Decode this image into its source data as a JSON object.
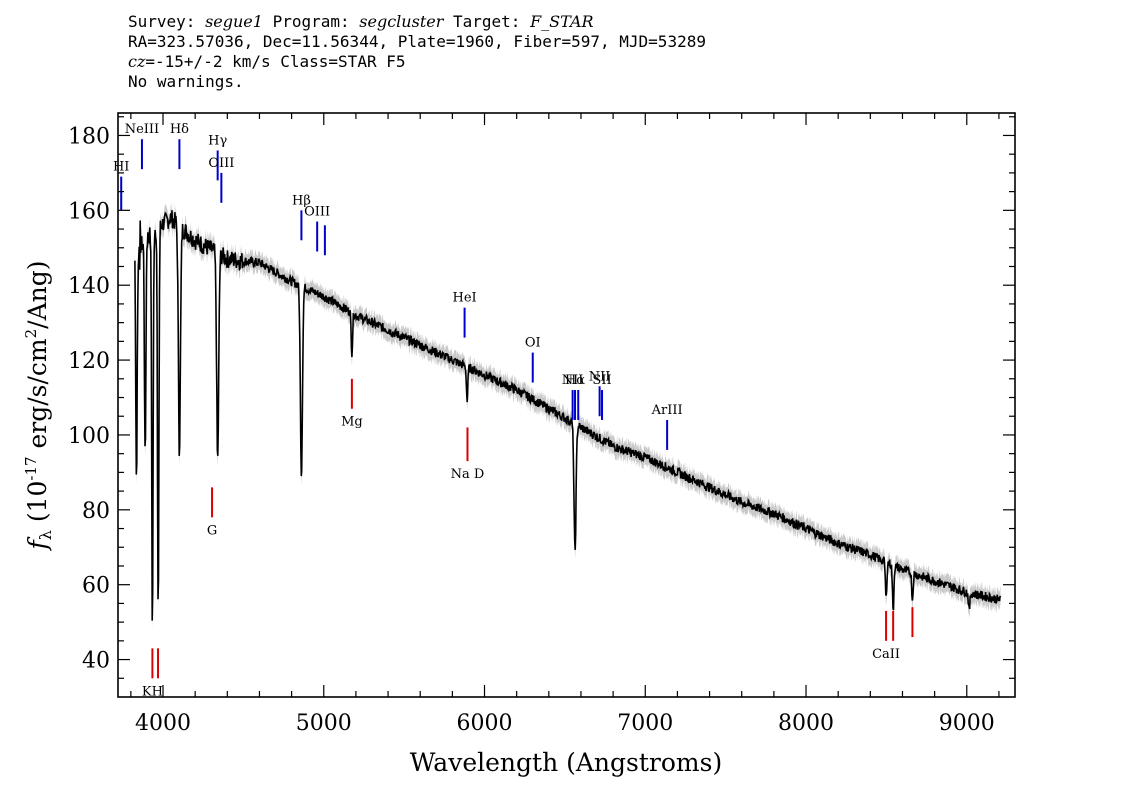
{
  "header": {
    "survey_label": "Survey:",
    "survey": "segue1",
    "program_label": "Program:",
    "program": "segcluster",
    "target_label": "Target:",
    "target": "F_STAR",
    "line2": "RA=323.57036, Dec=11.56344, Plate=1960, Fiber=597, MJD=53289",
    "cz_label": "cz",
    "cz_value": "=-15+/-2",
    "cz_rest": " km/s Class=STAR F5",
    "warnings": "No warnings."
  },
  "chart_data": {
    "type": "line",
    "xlabel": "Wavelength (Angstroms)",
    "ylabel": "f_λ (10^-17 erg/s/cm^2/Ang)",
    "xlim": [
      3720,
      9300
    ],
    "ylim": [
      30,
      186
    ],
    "x_ticks": [
      4000,
      5000,
      6000,
      7000,
      8000,
      9000
    ],
    "y_ticks": [
      40,
      60,
      80,
      100,
      120,
      140,
      160,
      180
    ],
    "grid": false,
    "colors": {
      "flux": "#000000",
      "error_band": "#bbbbbb",
      "emission": "#0000cc",
      "absorption": "#dd0000"
    },
    "continuum": [
      [
        3850,
        150
      ],
      [
        3950,
        155
      ],
      [
        4050,
        158
      ],
      [
        4200,
        152
      ],
      [
        4400,
        147
      ],
      [
        4600,
        146
      ],
      [
        4800,
        141
      ],
      [
        5000,
        137
      ],
      [
        5200,
        132
      ],
      [
        5400,
        128
      ],
      [
        5600,
        124
      ],
      [
        5800,
        120
      ],
      [
        6000,
        116
      ],
      [
        6200,
        112
      ],
      [
        6400,
        107
      ],
      [
        6600,
        102
      ],
      [
        6800,
        97
      ],
      [
        7000,
        94
      ],
      [
        7200,
        90
      ],
      [
        7400,
        86
      ],
      [
        7600,
        82
      ],
      [
        7800,
        79
      ],
      [
        8000,
        75
      ],
      [
        8200,
        71
      ],
      [
        8400,
        68
      ],
      [
        8600,
        64
      ],
      [
        8800,
        61
      ],
      [
        9000,
        58
      ],
      [
        9200,
        56
      ]
    ],
    "absorption_dips": [
      [
        3835,
        86
      ],
      [
        3889,
        93
      ],
      [
        3934,
        47
      ],
      [
        3970,
        51
      ],
      [
        4102,
        96
      ],
      [
        4340,
        93
      ],
      [
        4861,
        89
      ],
      [
        5175,
        122
      ],
      [
        5892,
        109
      ],
      [
        6563,
        69
      ],
      [
        8498,
        56
      ],
      [
        8542,
        53
      ],
      [
        8662,
        56
      ],
      [
        9015,
        53
      ]
    ],
    "emission_lines": [
      {
        "label": "NeIII",
        "x": 3869,
        "y0": 171,
        "y1": 179
      },
      {
        "label": "Hδ",
        "x": 4102,
        "y0": 171,
        "y1": 179
      },
      {
        "label": "Hγ",
        "x": 4340,
        "y0": 168,
        "y1": 176
      },
      {
        "label": "OIII",
        "x": 4363,
        "y0": 162,
        "y1": 170
      },
      {
        "label": "HI",
        "x": 3740,
        "y0": 160,
        "y1": 169
      },
      {
        "label": "Hβ",
        "x": 4861,
        "y0": 152,
        "y1": 160
      },
      {
        "label": "OIII",
        "x": 4959,
        "y0": 149,
        "y1": 157
      },
      {
        "label": "",
        "x": 5007,
        "y0": 148,
        "y1": 156
      },
      {
        "label": "HeI",
        "x": 5876,
        "y0": 126,
        "y1": 134
      },
      {
        "label": "OI",
        "x": 6300,
        "y0": 114,
        "y1": 122
      },
      {
        "label": "NII",
        "x": 6548,
        "y0": 104,
        "y1": 112
      },
      {
        "label": "Hα",
        "x": 6563,
        "y0": 104,
        "y1": 112
      },
      {
        "label": "",
        "x": 6583,
        "y0": 104,
        "y1": 112
      },
      {
        "label": "NII",
        "x": 6716,
        "y0": 105,
        "y1": 113
      },
      {
        "label": "SII",
        "x": 6731,
        "y0": 104,
        "y1": 112
      },
      {
        "label": "ArIII",
        "x": 7136,
        "y0": 96,
        "y1": 104
      }
    ],
    "absorption_lines": [
      {
        "label": "KH",
        "x": 3934,
        "y0": 35,
        "y1": 43
      },
      {
        "label": "",
        "x": 3969,
        "y0": 35,
        "y1": 43
      },
      {
        "label": "G",
        "x": 4305,
        "y0": 78,
        "y1": 86
      },
      {
        "label": "Mg",
        "x": 5175,
        "y0": 107,
        "y1": 115
      },
      {
        "label": "Na D",
        "x": 5894,
        "y0": 93,
        "y1": 102
      },
      {
        "label": "CaII",
        "x": 8498,
        "y0": 45,
        "y1": 53
      },
      {
        "label": "",
        "x": 8542,
        "y0": 45,
        "y1": 53
      },
      {
        "label": "",
        "x": 8662,
        "y0": 46,
        "y1": 54
      }
    ]
  }
}
